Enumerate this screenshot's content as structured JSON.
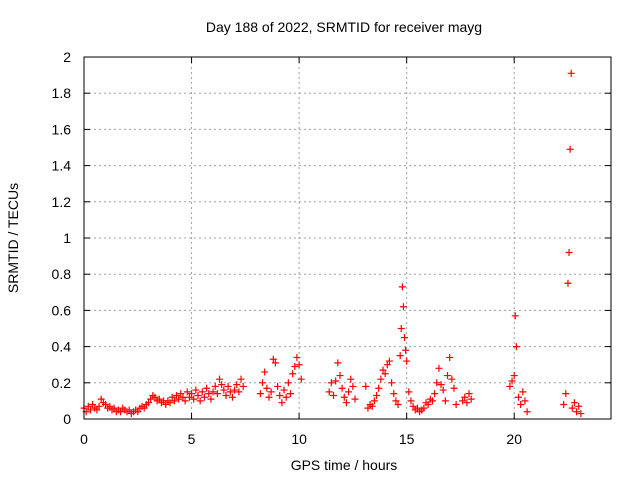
{
  "chart_data": {
    "type": "scatter",
    "title": "Day 188 of 2022, SRMTID for receiver mayg",
    "xlabel": "GPS time / hours",
    "ylabel": "SRMTID / TECUs",
    "xlim": [
      0,
      24.5
    ],
    "ylim": [
      0,
      2
    ],
    "x_ticks": [
      0,
      5,
      10,
      15,
      20
    ],
    "x_tick_labels": [
      "0",
      "5",
      "10",
      "15",
      "20"
    ],
    "y_ticks": [
      0,
      0.2,
      0.4,
      0.6,
      0.8,
      1,
      1.2,
      1.4,
      1.6,
      1.8,
      2
    ],
    "y_tick_labels": [
      "0",
      "0.2",
      "0.4",
      "0.6",
      "0.8",
      "1",
      "1.2",
      "1.4",
      "1.6",
      "1.8",
      "2"
    ],
    "grid": true,
    "marker": "+",
    "marker_color": "#ff0000",
    "series": [
      {
        "name": "SRMTID",
        "points": [
          [
            0.0,
            0.06
          ],
          [
            0.1,
            0.04
          ],
          [
            0.2,
            0.07
          ],
          [
            0.3,
            0.05
          ],
          [
            0.4,
            0.08
          ],
          [
            0.5,
            0.06
          ],
          [
            0.6,
            0.05
          ],
          [
            0.7,
            0.07
          ],
          [
            0.8,
            0.11
          ],
          [
            0.9,
            0.09
          ],
          [
            1.0,
            0.08
          ],
          [
            1.1,
            0.06
          ],
          [
            1.2,
            0.07
          ],
          [
            1.3,
            0.05
          ],
          [
            1.4,
            0.06
          ],
          [
            1.5,
            0.04
          ],
          [
            1.6,
            0.05
          ],
          [
            1.7,
            0.04
          ],
          [
            1.8,
            0.06
          ],
          [
            1.9,
            0.05
          ],
          [
            2.0,
            0.04
          ],
          [
            2.1,
            0.05
          ],
          [
            2.2,
            0.03
          ],
          [
            2.3,
            0.04
          ],
          [
            2.4,
            0.05
          ],
          [
            2.5,
            0.04
          ],
          [
            2.6,
            0.06
          ],
          [
            2.7,
            0.07
          ],
          [
            2.8,
            0.06
          ],
          [
            2.9,
            0.08
          ],
          [
            3.0,
            0.09
          ],
          [
            3.1,
            0.11
          ],
          [
            3.2,
            0.13
          ],
          [
            3.3,
            0.12
          ],
          [
            3.4,
            0.1
          ],
          [
            3.5,
            0.11
          ],
          [
            3.6,
            0.09
          ],
          [
            3.7,
            0.1
          ],
          [
            3.8,
            0.08
          ],
          [
            3.9,
            0.1
          ],
          [
            4.0,
            0.09
          ],
          [
            4.1,
            0.12
          ],
          [
            4.2,
            0.1
          ],
          [
            4.3,
            0.13
          ],
          [
            4.4,
            0.11
          ],
          [
            4.5,
            0.14
          ],
          [
            4.6,
            0.12
          ],
          [
            4.7,
            0.1
          ],
          [
            4.8,
            0.15
          ],
          [
            4.9,
            0.12
          ],
          [
            5.0,
            0.14
          ],
          [
            5.1,
            0.11
          ],
          [
            5.2,
            0.16
          ],
          [
            5.3,
            0.13
          ],
          [
            5.4,
            0.1
          ],
          [
            5.5,
            0.15
          ],
          [
            5.6,
            0.12
          ],
          [
            5.7,
            0.17
          ],
          [
            5.8,
            0.14
          ],
          [
            5.9,
            0.11
          ],
          [
            6.0,
            0.15
          ],
          [
            6.1,
            0.18
          ],
          [
            6.2,
            0.14
          ],
          [
            6.3,
            0.22
          ],
          [
            6.4,
            0.19
          ],
          [
            6.5,
            0.16
          ],
          [
            6.6,
            0.13
          ],
          [
            6.7,
            0.18
          ],
          [
            6.8,
            0.15
          ],
          [
            6.9,
            0.12
          ],
          [
            7.0,
            0.16
          ],
          [
            7.1,
            0.19
          ],
          [
            7.2,
            0.15
          ],
          [
            7.3,
            0.22
          ],
          [
            7.4,
            0.18
          ],
          [
            8.2,
            0.14
          ],
          [
            8.3,
            0.2
          ],
          [
            8.4,
            0.26
          ],
          [
            8.5,
            0.17
          ],
          [
            8.6,
            0.12
          ],
          [
            8.7,
            0.15
          ],
          [
            8.8,
            0.33
          ],
          [
            8.9,
            0.31
          ],
          [
            9.0,
            0.18
          ],
          [
            9.1,
            0.13
          ],
          [
            9.2,
            0.09
          ],
          [
            9.3,
            0.16
          ],
          [
            9.4,
            0.12
          ],
          [
            9.5,
            0.2
          ],
          [
            9.6,
            0.14
          ],
          [
            9.7,
            0.25
          ],
          [
            9.8,
            0.29
          ],
          [
            9.9,
            0.34
          ],
          [
            10.0,
            0.3
          ],
          [
            10.1,
            0.22
          ],
          [
            11.4,
            0.15
          ],
          [
            11.5,
            0.2
          ],
          [
            11.6,
            0.13
          ],
          [
            11.7,
            0.21
          ],
          [
            11.8,
            0.31
          ],
          [
            11.9,
            0.24
          ],
          [
            12.0,
            0.17
          ],
          [
            12.1,
            0.12
          ],
          [
            12.2,
            0.09
          ],
          [
            12.3,
            0.15
          ],
          [
            12.4,
            0.22
          ],
          [
            12.5,
            0.18
          ],
          [
            12.6,
            0.11
          ],
          [
            13.1,
            0.18
          ],
          [
            13.2,
            0.06
          ],
          [
            13.3,
            0.08
          ],
          [
            13.4,
            0.07
          ],
          [
            13.5,
            0.1
          ],
          [
            13.6,
            0.13
          ],
          [
            13.7,
            0.17
          ],
          [
            13.8,
            0.22
          ],
          [
            13.9,
            0.27
          ],
          [
            14.0,
            0.25
          ],
          [
            14.1,
            0.3
          ],
          [
            14.2,
            0.32
          ],
          [
            14.3,
            0.2
          ],
          [
            14.4,
            0.14
          ],
          [
            14.5,
            0.1
          ],
          [
            14.6,
            0.08
          ],
          [
            14.7,
            0.35
          ],
          [
            14.75,
            0.5
          ],
          [
            14.8,
            0.73
          ],
          [
            14.85,
            0.62
          ],
          [
            14.9,
            0.45
          ],
          [
            14.95,
            0.38
          ],
          [
            15.0,
            0.32
          ],
          [
            15.1,
            0.15
          ],
          [
            15.2,
            0.1
          ],
          [
            15.3,
            0.07
          ],
          [
            15.4,
            0.05
          ],
          [
            15.5,
            0.06
          ],
          [
            15.6,
            0.04
          ],
          [
            15.7,
            0.05
          ],
          [
            15.8,
            0.06
          ],
          [
            15.9,
            0.09
          ],
          [
            16.0,
            0.08
          ],
          [
            16.1,
            0.11
          ],
          [
            16.2,
            0.1
          ],
          [
            16.3,
            0.14
          ],
          [
            16.4,
            0.2
          ],
          [
            16.5,
            0.28
          ],
          [
            16.6,
            0.19
          ],
          [
            16.7,
            0.16
          ],
          [
            16.8,
            0.1
          ],
          [
            16.9,
            0.24
          ],
          [
            17.0,
            0.34
          ],
          [
            17.1,
            0.22
          ],
          [
            17.2,
            0.17
          ],
          [
            17.3,
            0.08
          ],
          [
            17.6,
            0.1
          ],
          [
            17.7,
            0.12
          ],
          [
            17.8,
            0.09
          ],
          [
            17.9,
            0.14
          ],
          [
            18.0,
            0.11
          ],
          [
            19.8,
            0.18
          ],
          [
            19.9,
            0.21
          ],
          [
            20.0,
            0.24
          ],
          [
            20.05,
            0.57
          ],
          [
            20.1,
            0.4
          ],
          [
            20.2,
            0.12
          ],
          [
            20.3,
            0.08
          ],
          [
            20.4,
            0.15
          ],
          [
            20.5,
            0.1
          ],
          [
            20.6,
            0.04
          ],
          [
            22.3,
            0.08
          ],
          [
            22.4,
            0.14
          ],
          [
            22.5,
            0.75
          ],
          [
            22.55,
            0.92
          ],
          [
            22.6,
            1.49
          ],
          [
            22.65,
            1.91
          ],
          [
            22.7,
            0.06
          ],
          [
            22.8,
            0.09
          ],
          [
            22.9,
            0.04
          ],
          [
            23.0,
            0.07
          ],
          [
            23.1,
            0.03
          ]
        ]
      }
    ]
  }
}
